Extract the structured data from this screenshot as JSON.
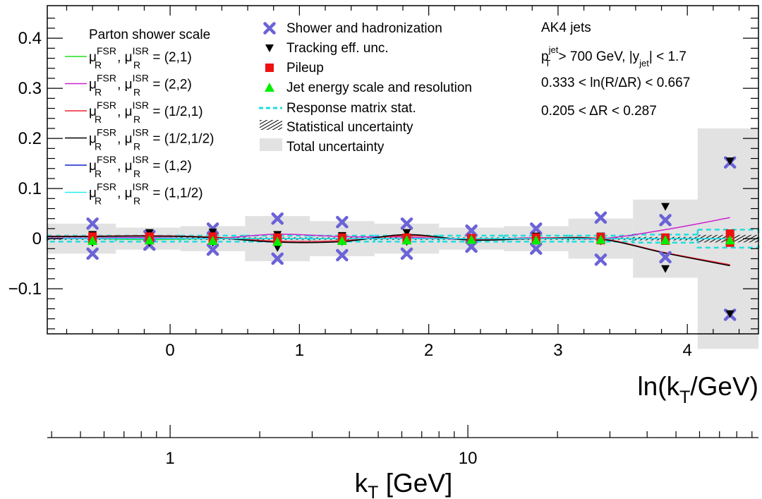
{
  "chart_data": {
    "type": "scatter",
    "x_axis": {
      "label": "ln(k",
      "label_sub": "T",
      "label_tail": "/GeV)",
      "range": [
        -0.95,
        4.55
      ],
      "ticks": [
        0,
        1,
        2,
        3,
        4
      ],
      "tick_labels": [
        "0",
        "1",
        "2",
        "3",
        "4"
      ]
    },
    "y_axis": {
      "range": [
        -0.19,
        0.465
      ],
      "ticks": [
        -0.1,
        0,
        0.1,
        0.2,
        0.3,
        0.4
      ],
      "tick_labels": [
        "−0.1",
        "0",
        "0.1",
        "0.2",
        "0.3",
        "0.4"
      ]
    },
    "secondary_axis": {
      "label": "k",
      "label_sub": "T",
      "label_tail": " [GeV]",
      "scale": "log",
      "range": [
        0.387,
        94.6
      ],
      "major_ticks": [
        1,
        10
      ],
      "major_tick_labels": [
        "1",
        "10"
      ],
      "minor_ticks": [
        0.4,
        0.5,
        0.6,
        0.7,
        0.8,
        0.9,
        2,
        3,
        4,
        5,
        6,
        7,
        8,
        9,
        20,
        30,
        40,
        50,
        60,
        70,
        80,
        90
      ]
    },
    "bins": {
      "edges": [
        -0.95,
        -0.42,
        0.08,
        0.58,
        1.08,
        1.58,
        2.08,
        2.58,
        3.08,
        3.58,
        4.08,
        4.55
      ],
      "centers": [
        -0.6,
        -0.16,
        0.33,
        0.83,
        1.33,
        1.83,
        2.33,
        2.83,
        3.33,
        3.83,
        4.33
      ],
      "total_uncertainty": [
        0.03,
        0.022,
        0.025,
        0.045,
        0.035,
        0.03,
        0.022,
        0.025,
        0.04,
        0.078,
        0.22
      ],
      "statistical_uncertainty": [
        0.001,
        0.001,
        0.001,
        0.001,
        0.001,
        0.001,
        0.001,
        0.001,
        0.001,
        0.002,
        0.006
      ],
      "response_matrix_stat": [
        0.006,
        0.006,
        0.006,
        0.006,
        0.006,
        0.006,
        0.006,
        0.006,
        0.006,
        0.008,
        0.018
      ]
    },
    "markers": [
      {
        "name": "Shower and hadronization",
        "symbol": "cross",
        "color": "#6b63d6",
        "points": [
          [
            -0.6,
            0.03
          ],
          [
            -0.6,
            -0.03
          ],
          [
            -0.16,
            0.005
          ],
          [
            -0.16,
            -0.012
          ],
          [
            0.33,
            0.02
          ],
          [
            0.33,
            -0.022
          ],
          [
            0.83,
            0.04
          ],
          [
            0.83,
            -0.04
          ],
          [
            1.33,
            0.033
          ],
          [
            1.33,
            -0.033
          ],
          [
            1.83,
            0.03
          ],
          [
            1.83,
            -0.03
          ],
          [
            2.33,
            0.016
          ],
          [
            2.33,
            -0.016
          ],
          [
            2.83,
            0.02
          ],
          [
            2.83,
            -0.02
          ],
          [
            3.33,
            0.042
          ],
          [
            3.33,
            -0.042
          ],
          [
            3.83,
            0.037
          ],
          [
            3.83,
            -0.037
          ],
          [
            4.33,
            0.152
          ],
          [
            4.33,
            -0.152
          ]
        ]
      },
      {
        "name": "Tracking eff. unc.",
        "symbol": "triangle-down",
        "color": "#000000",
        "points": [
          [
            -0.6,
            0.008
          ],
          [
            -0.6,
            -0.008
          ],
          [
            -0.16,
            0.012
          ],
          [
            -0.16,
            -0.008
          ],
          [
            0.33,
            0.013
          ],
          [
            0.33,
            -0.008
          ],
          [
            0.83,
            0.008
          ],
          [
            0.83,
            -0.018
          ],
          [
            1.33,
            0.006
          ],
          [
            1.33,
            -0.006
          ],
          [
            1.83,
            0.012
          ],
          [
            1.83,
            -0.006
          ],
          [
            2.33,
            0.002
          ],
          [
            2.33,
            -0.002
          ],
          [
            2.83,
            0.005
          ],
          [
            2.83,
            -0.005
          ],
          [
            3.33,
            0.005
          ],
          [
            3.33,
            -0.005
          ],
          [
            3.83,
            0.064
          ],
          [
            3.83,
            -0.06
          ],
          [
            4.33,
            0.155
          ],
          [
            4.33,
            -0.15
          ]
        ]
      },
      {
        "name": "Pileup",
        "symbol": "square",
        "color": "#ee1111",
        "points": [
          [
            -0.6,
            0.004
          ],
          [
            -0.6,
            -0.004
          ],
          [
            -0.16,
            0.004
          ],
          [
            -0.16,
            -0.003
          ],
          [
            0.33,
            0.004
          ],
          [
            0.33,
            -0.004
          ],
          [
            0.83,
            0.002
          ],
          [
            0.83,
            -0.002
          ],
          [
            1.33,
            0.002
          ],
          [
            1.33,
            -0.002
          ],
          [
            1.83,
            0.002
          ],
          [
            1.83,
            -0.002
          ],
          [
            2.33,
            0.001
          ],
          [
            2.33,
            -0.001
          ],
          [
            2.83,
            0.002
          ],
          [
            2.83,
            -0.002
          ],
          [
            3.33,
            0.003
          ],
          [
            3.33,
            -0.003
          ],
          [
            3.83,
            0.002
          ],
          [
            3.83,
            -0.004
          ],
          [
            4.33,
            0.01
          ],
          [
            4.33,
            -0.008
          ]
        ]
      },
      {
        "name": "Jet energy scale and resolution",
        "symbol": "triangle-up",
        "color": "#00ee00",
        "points": [
          [
            -0.6,
            -0.004
          ],
          [
            -0.16,
            -0.003
          ],
          [
            0.33,
            -0.004
          ],
          [
            0.83,
            -0.006
          ],
          [
            1.33,
            -0.004
          ],
          [
            1.83,
            -0.003
          ],
          [
            2.33,
            -0.002
          ],
          [
            2.83,
            -0.003
          ],
          [
            3.33,
            -0.002
          ],
          [
            3.83,
            -0.003
          ],
          [
            4.33,
            -0.003
          ]
        ]
      }
    ],
    "parton_shower_curves": [
      {
        "name": "(2,1)",
        "color": "#22dd22",
        "y": [
          0.0,
          -0.002,
          0.0,
          0.0,
          0.0,
          0.0,
          0.0,
          0.0,
          0.0,
          0.0,
          0.0
        ]
      },
      {
        "name": "(2,2)",
        "color": "#cc22cc",
        "y": [
          0.001,
          0.002,
          0.0,
          0.009,
          0.004,
          0.003,
          -0.002,
          0.002,
          0.0,
          0.018,
          0.042
        ]
      },
      {
        "name": "(1/2,1)",
        "color": "#ee2233",
        "y": [
          0.005,
          0.006,
          0.003,
          -0.005,
          -0.004,
          0.006,
          -0.002,
          0.001,
          0.0,
          -0.028,
          -0.052
        ]
      },
      {
        "name": "(1/2,1/2)",
        "color": "#000000",
        "y": [
          0.004,
          0.005,
          0.002,
          -0.007,
          -0.006,
          0.008,
          -0.003,
          0.0,
          -0.001,
          -0.029,
          -0.054
        ]
      },
      {
        "name": "(1,2)",
        "color": "#1122cc",
        "y": [
          0.0,
          0.0,
          0.0,
          0.0,
          0.0,
          0.0,
          0.0,
          0.0,
          0.0,
          0.0,
          0.0
        ]
      },
      {
        "name": "(1,1/2)",
        "color": "#22eeee",
        "y": [
          0.0,
          0.0,
          0.0,
          0.0,
          0.0,
          0.0,
          0.0,
          0.0,
          0.0,
          0.0,
          0.0
        ]
      }
    ],
    "legend_left": {
      "title": "Parton shower scale",
      "mu": "μ",
      "sub_r": "R",
      "sup_fsr": "FSR",
      "sup_isr": "ISR",
      "sep": ", ",
      "eq": " = "
    },
    "legend_middle": [
      "Shower and hadronization",
      "Tracking eff. unc.",
      "Pileup",
      "Jet energy scale and resolution",
      "Response matrix stat.",
      "Statistical uncertainty",
      "Total uncertainty"
    ],
    "annotations": {
      "jets": "AK4 jets",
      "pt_cut": {
        "p": "p",
        "p_sub": "T",
        "p_sup": "jet",
        "mid": " > 700 GeV, |y",
        "y_sub": "jet",
        "tail": "| < 1.7"
      },
      "ln_range": "0.333 < ln(R/ΔR) < 0.667",
      "dr_range": "0.205 < ΔR < 0.287"
    },
    "colors": {
      "total_band": "#e2e2e2",
      "response_matrix": "#22dddd",
      "cross": "#6b63d6",
      "pileup": "#ee1111",
      "jes": "#00ee00"
    }
  }
}
